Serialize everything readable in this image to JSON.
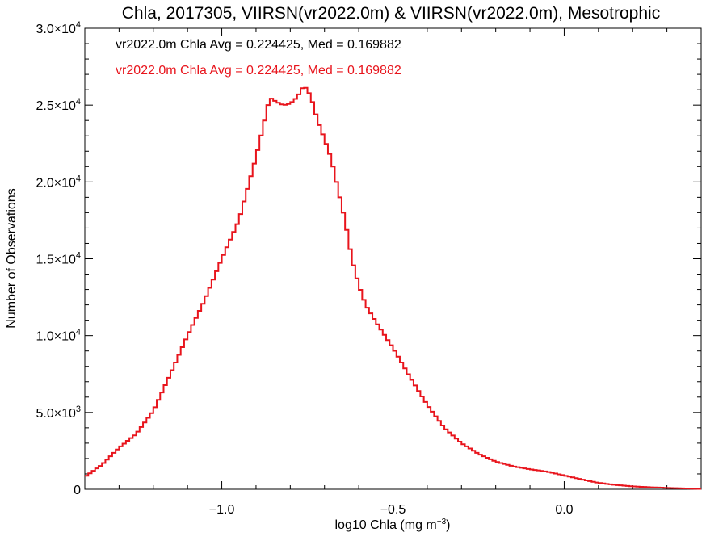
{
  "chart_data": {
    "type": "line",
    "title": "Chla, 2017305, VIIRSN(vr2022.0m) & VIIRSN(vr2022.0m), Mesotrophic",
    "xlabel_main": "log10 Chla (mg m",
    "xlabel_sup": "−3",
    "xlabel_close": ")",
    "ylabel": "Number of Observations",
    "xlim": [
      -1.4,
      0.4
    ],
    "ylim": [
      0,
      30000
    ],
    "x_ticks": [
      {
        "value": -1.0,
        "label": "−1.0"
      },
      {
        "value": -0.5,
        "label": "−0.5"
      },
      {
        "value": 0.0,
        "label": "0.0"
      }
    ],
    "y_ticks": [
      {
        "value": 0,
        "mant": "0",
        "exp": ""
      },
      {
        "value": 5000,
        "mant": "5.0×10",
        "exp": "3"
      },
      {
        "value": 10000,
        "mant": "1.0×10",
        "exp": "4"
      },
      {
        "value": 15000,
        "mant": "1.5×10",
        "exp": "4"
      },
      {
        "value": 20000,
        "mant": "2.0×10",
        "exp": "4"
      },
      {
        "value": 25000,
        "mant": "2.5×10",
        "exp": "4"
      },
      {
        "value": 30000,
        "mant": "3.0×10",
        "exp": "4"
      }
    ],
    "annotations": [
      {
        "text": "vr2022.0m Chla Avg = 0.224425, Med = 0.169882",
        "color": "#000000"
      },
      {
        "text": "vr2022.0m Chla Avg = 0.224425, Med = 0.169882",
        "color": "#e8141c"
      }
    ],
    "series": [
      {
        "color": "#e8141c",
        "x": [
          -1.4,
          -1.35,
          -1.3,
          -1.25,
          -1.2,
          -1.15,
          -1.1,
          -1.05,
          -1.0,
          -0.95,
          -0.9,
          -0.88,
          -0.86,
          -0.84,
          -0.82,
          -0.8,
          -0.78,
          -0.76,
          -0.74,
          -0.72,
          -0.7,
          -0.68,
          -0.66,
          -0.64,
          -0.62,
          -0.6,
          -0.58,
          -0.55,
          -0.5,
          -0.45,
          -0.4,
          -0.35,
          -0.3,
          -0.25,
          -0.2,
          -0.15,
          -0.1,
          -0.05,
          0.0,
          0.05,
          0.1,
          0.15,
          0.2,
          0.25,
          0.3,
          0.35,
          0.4
        ],
        "y": [
          800,
          1600,
          2700,
          3600,
          5100,
          7500,
          10000,
          12300,
          15000,
          17500,
          21600,
          23500,
          25500,
          25200,
          25000,
          25100,
          25500,
          26300,
          25600,
          24000,
          22800,
          21500,
          19500,
          17500,
          15000,
          13300,
          12000,
          10900,
          9200,
          7300,
          5500,
          4000,
          3000,
          2300,
          1800,
          1500,
          1300,
          1150,
          900,
          650,
          420,
          280,
          190,
          130,
          90,
          55,
          20
        ]
      }
    ]
  }
}
